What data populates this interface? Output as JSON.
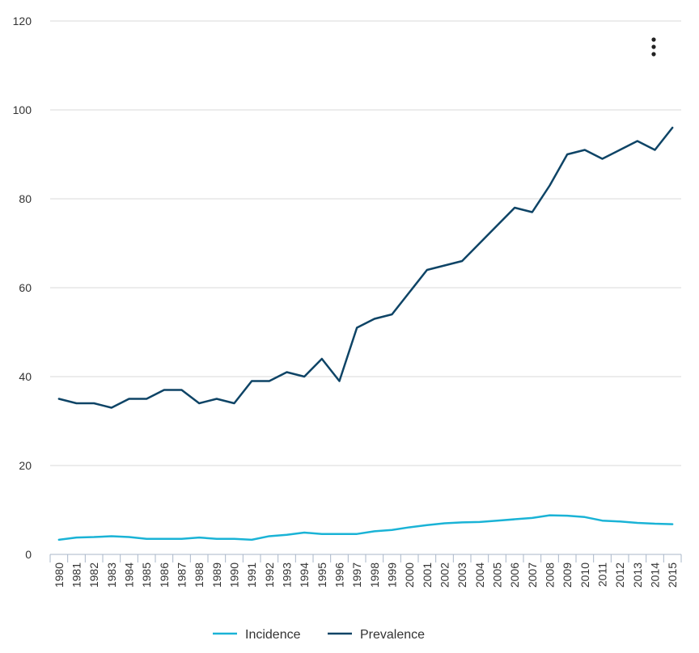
{
  "chart_data": {
    "type": "line",
    "x": [
      "1980",
      "1981",
      "1982",
      "1983",
      "1984",
      "1985",
      "1986",
      "1987",
      "1988",
      "1989",
      "1990",
      "1991",
      "1992",
      "1993",
      "1994",
      "1995",
      "1996",
      "1997",
      "1998",
      "1999",
      "2000",
      "2001",
      "2002",
      "2003",
      "2004",
      "2005",
      "2006",
      "2007",
      "2008",
      "2009",
      "2010",
      "2011",
      "2012",
      "2013",
      "2014",
      "2015"
    ],
    "series": [
      {
        "name": "Incidence",
        "color": "#1ab3d6",
        "values": [
          3.3,
          3.8,
          3.9,
          4.1,
          3.9,
          3.5,
          3.5,
          3.5,
          3.8,
          3.5,
          3.5,
          3.3,
          4.1,
          4.4,
          4.9,
          4.6,
          4.6,
          4.6,
          5.2,
          5.5,
          6.1,
          6.6,
          7.0,
          7.2,
          7.3,
          7.6,
          7.9,
          8.2,
          8.8,
          8.7,
          8.4,
          7.6,
          7.4,
          7.1,
          6.9,
          6.8
        ]
      },
      {
        "name": "Prevalence",
        "color": "#0e4466",
        "values": [
          35,
          34,
          34,
          33,
          35,
          35,
          37,
          37,
          34,
          35,
          34,
          39,
          39,
          41,
          40,
          44,
          39,
          51,
          53,
          54,
          59,
          64,
          65,
          66,
          70,
          74,
          78,
          77,
          83,
          90,
          91,
          89,
          91,
          93,
          91,
          96
        ]
      }
    ],
    "ylim": [
      0,
      120
    ],
    "yticks": [
      0,
      20,
      40,
      60,
      80,
      100,
      120
    ],
    "grid": true,
    "legend_position": "bottom-center"
  },
  "toolbar": {
    "menu_icon": "vertical-ellipsis-icon"
  }
}
